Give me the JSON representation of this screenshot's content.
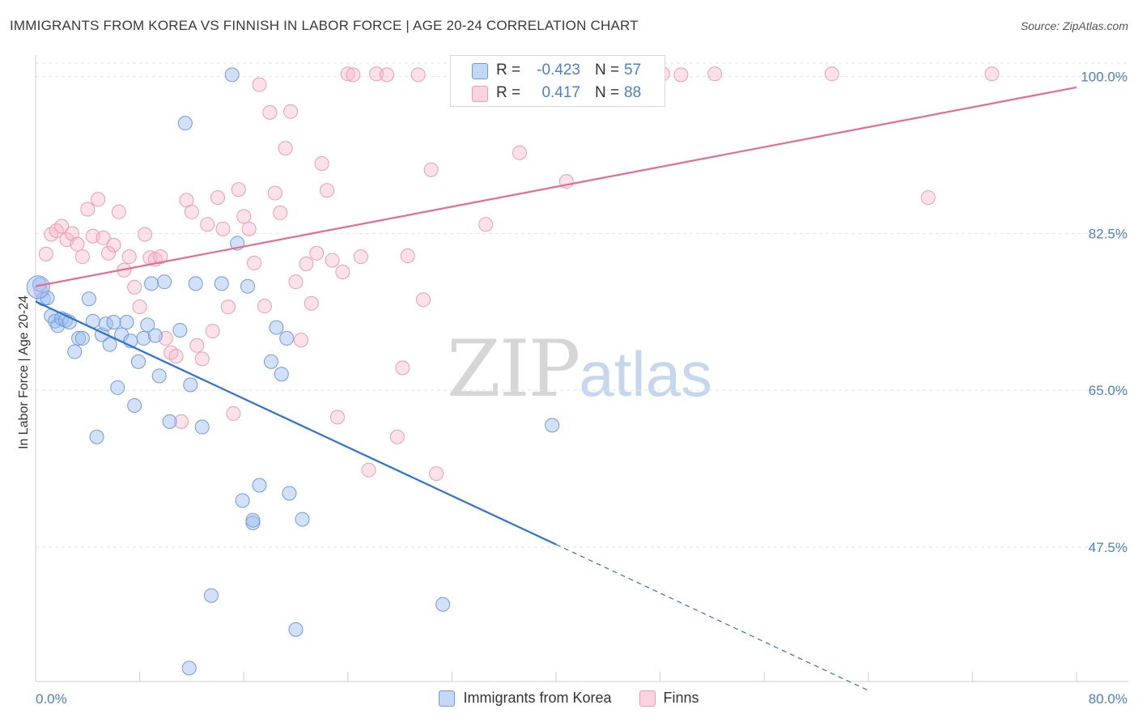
{
  "header": {
    "title": "IMMIGRANTS FROM KOREA VS FINNISH IN LABOR FORCE | AGE 20-24 CORRELATION CHART",
    "source": "Source: ZipAtlas.com"
  },
  "watermark": {
    "zip": "ZIP",
    "atlas": "atlas"
  },
  "stats": {
    "series1": {
      "r_label": "R =",
      "r_value": "-0.423",
      "n_label": "N =",
      "n_value": "57",
      "color": "#9bbcf0"
    },
    "series2": {
      "r_label": "R =",
      "r_value": "0.417",
      "n_label": "N =",
      "n_value": "88",
      "color": "#f5b6c8"
    }
  },
  "legend": {
    "series1": "Immigrants from Korea",
    "series2": "Finns"
  },
  "chart_data": {
    "type": "scatter",
    "ylabel": "In Labor Force | Age 20-24",
    "xlim": [
      0,
      80
    ],
    "ylim": [
      32.5,
      101.5
    ],
    "x_tick_labels": [
      "0.0%",
      "80.0%"
    ],
    "y_ticks": [
      47.5,
      65.0,
      82.5,
      100.0
    ],
    "y_tick_labels": [
      "47.5%",
      "65.0%",
      "82.5%",
      "100.0%"
    ],
    "grid": true,
    "colors": {
      "korea_fill": "rgba(155,188,240,0.45)",
      "korea_stroke": "#6f9be0",
      "korea_line": "#2a72d6",
      "finns_fill": "rgba(245,182,200,0.40)",
      "finns_stroke": "#ee9bb4",
      "finns_line": "#e56b93",
      "tick_text": "#4a7ed6"
    },
    "series": [
      {
        "name": "Immigrants from Korea",
        "points": [
          [
            0.3,
            76.8
          ],
          [
            0.6,
            75.2
          ],
          [
            0.9,
            75.3
          ],
          [
            1.2,
            73.3
          ],
          [
            1.5,
            72.7
          ],
          [
            1.7,
            72.2
          ],
          [
            2.0,
            73.0
          ],
          [
            2.3,
            72.8
          ],
          [
            2.6,
            72.6
          ],
          [
            3.0,
            69.3
          ],
          [
            3.3,
            70.8
          ],
          [
            3.6,
            70.8
          ],
          [
            4.1,
            75.2
          ],
          [
            4.4,
            72.7
          ],
          [
            4.7,
            59.8
          ],
          [
            5.1,
            71.2
          ],
          [
            5.4,
            72.4
          ],
          [
            5.7,
            70.1
          ],
          [
            6.0,
            72.6
          ],
          [
            6.3,
            65.3
          ],
          [
            6.6,
            71.2
          ],
          [
            7.0,
            72.6
          ],
          [
            7.3,
            70.5
          ],
          [
            7.6,
            63.3
          ],
          [
            7.9,
            68.2
          ],
          [
            8.3,
            70.8
          ],
          [
            8.6,
            72.3
          ],
          [
            8.9,
            76.9
          ],
          [
            9.2,
            71.1
          ],
          [
            9.5,
            66.6
          ],
          [
            9.9,
            77.1
          ],
          [
            10.3,
            61.5
          ],
          [
            11.1,
            71.7
          ],
          [
            11.5,
            94.8
          ],
          [
            11.9,
            65.6
          ],
          [
            12.3,
            76.9
          ],
          [
            12.8,
            60.9
          ],
          [
            13.5,
            42.1
          ],
          [
            14.3,
            76.9
          ],
          [
            15.1,
            100.2
          ],
          [
            15.5,
            81.4
          ],
          [
            15.9,
            52.7
          ],
          [
            16.3,
            76.6
          ],
          [
            16.7,
            50.2
          ],
          [
            16.7,
            50.5
          ],
          [
            17.2,
            54.4
          ],
          [
            18.1,
            68.2
          ],
          [
            18.5,
            72.0
          ],
          [
            18.9,
            66.8
          ],
          [
            19.3,
            70.8
          ],
          [
            19.5,
            53.5
          ],
          [
            20.0,
            38.3
          ],
          [
            20.5,
            50.6
          ],
          [
            11.8,
            34.0
          ],
          [
            31.3,
            41.1
          ],
          [
            39.7,
            61.1
          ],
          [
            0.2,
            76.5
          ]
        ]
      },
      {
        "name": "Finns",
        "points": [
          [
            0.4,
            76.1
          ],
          [
            0.8,
            80.2
          ],
          [
            1.2,
            82.4
          ],
          [
            1.6,
            82.8
          ],
          [
            2.0,
            83.3
          ],
          [
            2.4,
            81.8
          ],
          [
            2.8,
            82.5
          ],
          [
            3.2,
            81.3
          ],
          [
            3.6,
            79.9
          ],
          [
            4.0,
            85.2
          ],
          [
            4.4,
            82.2
          ],
          [
            4.8,
            86.3
          ],
          [
            5.2,
            82.0
          ],
          [
            5.6,
            80.3
          ],
          [
            6.0,
            81.2
          ],
          [
            6.4,
            84.9
          ],
          [
            6.8,
            78.4
          ],
          [
            7.2,
            79.9
          ],
          [
            7.6,
            76.5
          ],
          [
            8.0,
            74.3
          ],
          [
            8.4,
            82.4
          ],
          [
            8.8,
            79.8
          ],
          [
            9.2,
            79.6
          ],
          [
            9.6,
            79.9
          ],
          [
            10.0,
            70.8
          ],
          [
            10.4,
            69.2
          ],
          [
            10.8,
            68.8
          ],
          [
            11.2,
            61.5
          ],
          [
            11.6,
            86.2
          ],
          [
            12.0,
            84.9
          ],
          [
            12.4,
            70.0
          ],
          [
            12.8,
            68.5
          ],
          [
            13.2,
            83.5
          ],
          [
            13.6,
            71.6
          ],
          [
            14.0,
            86.5
          ],
          [
            14.4,
            83.0
          ],
          [
            14.8,
            74.3
          ],
          [
            15.2,
            62.4
          ],
          [
            15.6,
            87.4
          ],
          [
            16.0,
            84.4
          ],
          [
            16.4,
            83.0
          ],
          [
            16.8,
            79.2
          ],
          [
            17.2,
            99.1
          ],
          [
            17.6,
            74.4
          ],
          [
            18.0,
            96.0
          ],
          [
            18.4,
            87.0
          ],
          [
            18.8,
            84.8
          ],
          [
            19.2,
            92.0
          ],
          [
            19.6,
            96.1
          ],
          [
            20.0,
            77.1
          ],
          [
            20.4,
            70.6
          ],
          [
            20.8,
            79.1
          ],
          [
            21.2,
            74.7
          ],
          [
            21.6,
            80.3
          ],
          [
            22.0,
            90.3
          ],
          [
            22.4,
            87.3
          ],
          [
            22.8,
            79.5
          ],
          [
            23.2,
            62.0
          ],
          [
            23.6,
            78.2
          ],
          [
            24.0,
            100.3
          ],
          [
            24.4,
            100.2
          ],
          [
            25.0,
            79.9
          ],
          [
            25.6,
            56.1
          ],
          [
            26.2,
            100.3
          ],
          [
            27.0,
            100.2
          ],
          [
            27.8,
            59.8
          ],
          [
            28.2,
            67.5
          ],
          [
            28.6,
            80.0
          ],
          [
            29.4,
            100.2
          ],
          [
            29.8,
            75.1
          ],
          [
            30.4,
            89.6
          ],
          [
            30.8,
            55.7
          ],
          [
            34.0,
            100.3
          ],
          [
            34.6,
            83.5
          ],
          [
            36.0,
            100.3
          ],
          [
            37.2,
            91.5
          ],
          [
            38.6,
            100.3
          ],
          [
            39.4,
            100.2
          ],
          [
            40.8,
            88.3
          ],
          [
            41.6,
            100.2
          ],
          [
            43.8,
            100.3
          ],
          [
            44.8,
            100.2
          ],
          [
            48.2,
            100.3
          ],
          [
            49.6,
            100.2
          ],
          [
            52.2,
            100.3
          ],
          [
            61.2,
            100.3
          ],
          [
            68.6,
            86.5
          ],
          [
            73.5,
            100.3
          ]
        ]
      }
    ],
    "trendlines": [
      {
        "series": "Immigrants from Korea",
        "from": [
          0,
          74.9
        ],
        "to": [
          40.0,
          47.8
        ],
        "dashed_to": [
          64.0,
          31.5
        ]
      },
      {
        "series": "Finns",
        "from": [
          0,
          76.6
        ],
        "to": [
          80.0,
          98.8
        ]
      }
    ]
  }
}
